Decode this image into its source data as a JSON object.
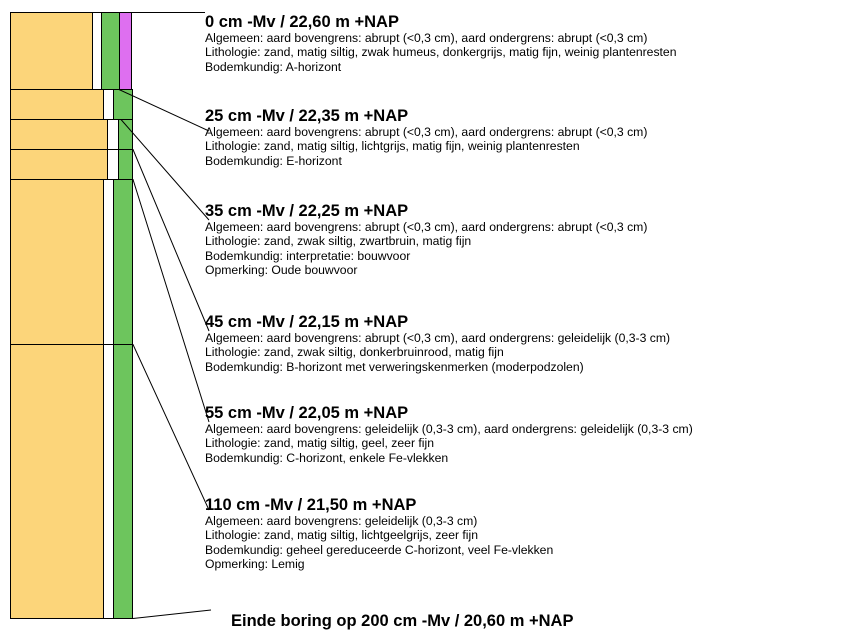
{
  "colors": {
    "sand": "#fcd57a",
    "green": "#6dc55d",
    "pink": "#de6ff0",
    "border": "#000000"
  },
  "layers": [
    {
      "title": "0 cm -Mv / 22,60 m +NAP",
      "lines": [
        "Algemeen: aard bovengrens: abrupt (<0,3 cm), aard ondergrens: abrupt (<0,3 cm)",
        "Lithologie: zand, matig siltig, zwak humeus, donkergrijs, matig fijn, weinig plantenresten",
        "Bodemkundig: A-horizont"
      ]
    },
    {
      "title": "25 cm -Mv / 22,35 m +NAP",
      "lines": [
        "Algemeen: aard bovengrens: abrupt (<0,3 cm), aard ondergrens: abrupt (<0,3 cm)",
        "Lithologie: zand, matig siltig, lichtgrijs, matig fijn, weinig plantenresten",
        "Bodemkundig: E-horizont"
      ]
    },
    {
      "title": "35 cm -Mv / 22,25 m +NAP",
      "lines": [
        "Algemeen: aard bovengrens: abrupt (<0,3 cm), aard ondergrens: abrupt (<0,3 cm)",
        "Lithologie: zand, zwak siltig, zwartbruin, matig fijn",
        "Bodemkundig: interpretatie: bouwvoor",
        "Opmerking: Oude bouwvoor"
      ]
    },
    {
      "title": "45 cm -Mv / 22,15 m +NAP",
      "lines": [
        "Algemeen: aard bovengrens: abrupt (<0,3 cm), aard ondergrens: geleidelijk (0,3-3 cm)",
        "Lithologie: zand, zwak siltig, donkerbruinrood, matig fijn",
        "Bodemkundig: B-horizont met verweringskenmerken (moderpodzolen)"
      ]
    },
    {
      "title": "55 cm -Mv / 22,05 m +NAP",
      "lines": [
        "Algemeen: aard bovengrens: geleidelijk (0,3-3 cm), aard ondergrens: geleidelijk (0,3-3 cm)",
        "Lithologie: zand, matig siltig, geel, zeer fijn",
        "Bodemkundig: C-horizont, enkele Fe-vlekken"
      ]
    },
    {
      "title": "110 cm -Mv / 21,50 m +NAP",
      "lines": [
        "Algemeen: aard bovengrens: geleidelijk (0,3-3 cm)",
        "Lithologie: zand, matig siltig, lichtgeelgrijs, zeer fijn",
        "Bodemkundig: geheel gereduceerde C-horizont, veel Fe-vlekken",
        "Opmerking: Lemig"
      ]
    }
  ],
  "end_label": "Einde boring op 200 cm -Mv / 20,60 m +NAP"
}
